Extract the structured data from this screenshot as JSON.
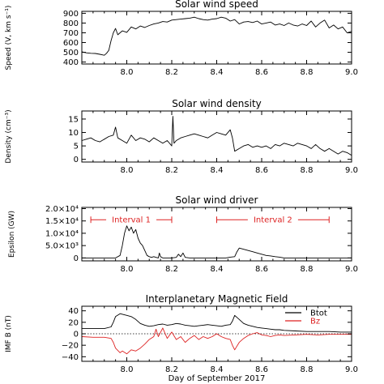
{
  "chart_data": [
    {
      "type": "line",
      "title": "Solar wind speed",
      "ylabel": "Speed (V, km s⁻¹)",
      "xlim": [
        7.8,
        9.0
      ],
      "ylim": [
        380,
        920
      ],
      "yticks": [
        400,
        500,
        600,
        700,
        800,
        900
      ],
      "ytick_labels": [
        "400",
        "500",
        "600",
        "700",
        "800",
        "900"
      ],
      "xticks": [
        8.0,
        8.2,
        8.4,
        8.6,
        8.8,
        9.0
      ],
      "xtick_labels": [
        "8.0",
        "8.2",
        "8.4",
        "8.6",
        "8.8",
        "9.0"
      ],
      "series": [
        {
          "color": "#000000",
          "x": [
            7.8,
            7.82,
            7.84,
            7.86,
            7.88,
            7.9,
            7.91,
            7.92,
            7.93,
            7.94,
            7.95,
            7.96,
            7.98,
            8.0,
            8.02,
            8.04,
            8.06,
            8.08,
            8.1,
            8.12,
            8.14,
            8.16,
            8.18,
            8.2,
            8.22,
            8.24,
            8.26,
            8.28,
            8.3,
            8.32,
            8.34,
            8.36,
            8.38,
            8.4,
            8.42,
            8.44,
            8.46,
            8.48,
            8.5,
            8.52,
            8.54,
            8.56,
            8.58,
            8.6,
            8.62,
            8.64,
            8.66,
            8.68,
            8.7,
            8.72,
            8.74,
            8.76,
            8.78,
            8.8,
            8.82,
            8.84,
            8.86,
            8.88,
            8.9,
            8.92,
            8.94,
            8.96,
            8.98,
            9.0
          ],
          "y": [
            505,
            495,
            490,
            488,
            480,
            470,
            490,
            520,
            620,
            700,
            745,
            680,
            720,
            705,
            760,
            740,
            770,
            755,
            775,
            790,
            800,
            815,
            810,
            830,
            835,
            840,
            845,
            850,
            860,
            845,
            835,
            830,
            840,
            845,
            860,
            850,
            820,
            835,
            790,
            810,
            815,
            805,
            820,
            790,
            800,
            810,
            780,
            790,
            775,
            800,
            780,
            770,
            790,
            775,
            820,
            760,
            800,
            830,
            750,
            780,
            740,
            760,
            700,
            715
          ]
        }
      ]
    },
    {
      "type": "line",
      "title": "Solar wind density",
      "ylabel": "Density (cm⁻³)",
      "xlim": [
        7.8,
        9.0
      ],
      "ylim": [
        -1,
        18
      ],
      "yticks": [
        0,
        5,
        10,
        15
      ],
      "ytick_labels": [
        "0",
        "5",
        "10",
        "15"
      ],
      "xticks": [
        8.0,
        8.2,
        8.4,
        8.6,
        8.8,
        9.0
      ],
      "xtick_labels": [
        "8.0",
        "8.2",
        "8.4",
        "8.6",
        "8.8",
        "9.0"
      ],
      "series": [
        {
          "color": "#000000",
          "x": [
            7.8,
            7.82,
            7.84,
            7.86,
            7.88,
            7.9,
            7.92,
            7.94,
            7.95,
            7.96,
            7.98,
            8.0,
            8.02,
            8.04,
            8.06,
            8.08,
            8.1,
            8.12,
            8.14,
            8.16,
            8.18,
            8.2,
            8.205,
            8.21,
            8.22,
            8.24,
            8.26,
            8.28,
            8.3,
            8.32,
            8.34,
            8.36,
            8.38,
            8.4,
            8.42,
            8.44,
            8.46,
            8.47,
            8.48,
            8.5,
            8.52,
            8.54,
            8.56,
            8.58,
            8.6,
            8.62,
            8.64,
            8.66,
            8.68,
            8.7,
            8.72,
            8.74,
            8.76,
            8.78,
            8.8,
            8.82,
            8.84,
            8.86,
            8.88,
            8.9,
            8.92,
            8.94,
            8.96,
            8.98,
            9.0
          ],
          "y": [
            7,
            7.5,
            8,
            7,
            6.5,
            7.5,
            8.5,
            9,
            12,
            8,
            7,
            6,
            9,
            7,
            8,
            7.5,
            6.5,
            8,
            7,
            6,
            7,
            5,
            16,
            6,
            7,
            8,
            8.5,
            9,
            9.5,
            9,
            8.5,
            8,
            9,
            10,
            9.5,
            9,
            11,
            8,
            3,
            4,
            5,
            5.5,
            4.5,
            5,
            4.5,
            5,
            4,
            5.5,
            5,
            6,
            5.5,
            5,
            6,
            5.5,
            5,
            4,
            5.5,
            4,
            3,
            4,
            3,
            2,
            3,
            2.5,
            1.5
          ]
        }
      ]
    },
    {
      "type": "line",
      "title": "Solar wind driver",
      "ylabel": "Epsilon (GW)",
      "xlim": [
        7.8,
        9.0
      ],
      "ylim": [
        -0.12,
        2.05
      ],
      "yticks": [
        0,
        0.5,
        1.0,
        1.5,
        2.0
      ],
      "ytick_labels": [
        "0",
        "5.0×10³",
        "1.0×10⁴",
        "1.5×10⁴",
        "2.0×10⁴"
      ],
      "xticks": [
        8.0,
        8.2,
        8.4,
        8.6,
        8.8,
        9.0
      ],
      "xtick_labels": [
        "8.0",
        "8.2",
        "8.4",
        "8.6",
        "8.8",
        "9.0"
      ],
      "annotations": [
        {
          "text": "Interval 1",
          "x_start": 7.84,
          "x_end": 8.2,
          "y": 1.55,
          "color": "#dd2222"
        },
        {
          "text": "Interval 2",
          "x_start": 8.4,
          "x_end": 8.9,
          "y": 1.55,
          "color": "#dd2222"
        }
      ],
      "series": [
        {
          "color": "#000000",
          "x": [
            7.8,
            7.85,
            7.9,
            7.95,
            7.97,
            7.98,
            7.99,
            8.0,
            8.01,
            8.02,
            8.03,
            8.04,
            8.05,
            8.06,
            8.07,
            8.08,
            8.09,
            8.1,
            8.11,
            8.12,
            8.13,
            8.14,
            8.145,
            8.15,
            8.16,
            8.18,
            8.2,
            8.22,
            8.23,
            8.24,
            8.25,
            8.26,
            8.28,
            8.3,
            8.35,
            8.4,
            8.44,
            8.46,
            8.48,
            8.49,
            8.5,
            8.52,
            8.54,
            8.56,
            8.58,
            8.6,
            8.62,
            8.64,
            8.66,
            8.68,
            8.7,
            8.8,
            8.9,
            9.0
          ],
          "y": [
            0,
            0,
            0,
            0,
            0.1,
            0.5,
            1.0,
            1.3,
            1.1,
            1.25,
            1.0,
            1.15,
            0.8,
            0.6,
            0.5,
            0.3,
            0.1,
            0.05,
            0.02,
            0.05,
            0.02,
            0,
            0.2,
            0.05,
            0,
            0,
            0,
            0.02,
            0.15,
            0.05,
            0.2,
            0.02,
            0,
            0,
            0,
            0,
            0,
            0.03,
            0.05,
            0.25,
            0.4,
            0.35,
            0.3,
            0.25,
            0.2,
            0.15,
            0.1,
            0.08,
            0.05,
            0.03,
            0,
            0,
            0,
            0
          ]
        }
      ]
    },
    {
      "type": "line",
      "title": "Interplanetary Magnetic Field",
      "ylabel": "IMF B (nT)",
      "xlabel": "Day of September 2017",
      "xlim": [
        7.8,
        9.0
      ],
      "ylim": [
        -48,
        48
      ],
      "yticks": [
        -40,
        -20,
        0,
        20,
        40
      ],
      "ytick_labels": [
        "−40",
        "−20",
        "0",
        "20",
        "40"
      ],
      "xticks": [
        8.0,
        8.2,
        8.4,
        8.6,
        8.8,
        9.0
      ],
      "xtick_labels": [
        "8.0",
        "8.2",
        "8.4",
        "8.6",
        "8.8",
        "9.0"
      ],
      "series": [
        {
          "name": "Btot",
          "color": "#000000",
          "x": [
            7.8,
            7.85,
            7.9,
            7.93,
            7.94,
            7.95,
            7.97,
            8.0,
            8.02,
            8.04,
            8.06,
            8.08,
            8.1,
            8.12,
            8.14,
            8.16,
            8.18,
            8.2,
            8.22,
            8.24,
            8.26,
            8.28,
            8.3,
            8.32,
            8.34,
            8.36,
            8.38,
            8.4,
            8.42,
            8.44,
            8.46,
            8.47,
            8.48,
            8.5,
            8.52,
            8.54,
            8.56,
            8.58,
            8.6,
            8.62,
            8.64,
            8.66,
            8.68,
            8.7,
            8.75,
            8.8,
            8.85,
            8.9,
            8.95,
            9.0
          ],
          "y": [
            9,
            9,
            9,
            12,
            20,
            30,
            35,
            32,
            30,
            25,
            18,
            15,
            13,
            14,
            16,
            17,
            15,
            16,
            18,
            17,
            15,
            14,
            13,
            14,
            15,
            16,
            15,
            14,
            13,
            15,
            16,
            22,
            32,
            25,
            18,
            15,
            13,
            11,
            10,
            9,
            8,
            7,
            7,
            6,
            5,
            4,
            4,
            4,
            3,
            3
          ]
        },
        {
          "name": "Bz",
          "color": "#dd2222",
          "x": [
            7.8,
            7.85,
            7.9,
            7.93,
            7.94,
            7.95,
            7.97,
            7.98,
            8.0,
            8.02,
            8.04,
            8.06,
            8.08,
            8.1,
            8.12,
            8.13,
            8.14,
            8.16,
            8.18,
            8.2,
            8.22,
            8.24,
            8.26,
            8.28,
            8.3,
            8.32,
            8.34,
            8.36,
            8.38,
            8.4,
            8.42,
            8.44,
            8.46,
            8.47,
            8.48,
            8.5,
            8.52,
            8.54,
            8.56,
            8.58,
            8.6,
            8.62,
            8.64,
            8.66,
            8.68,
            8.7,
            8.75,
            8.8,
            8.85,
            8.9,
            8.95,
            9.0
          ],
          "y": [
            -5,
            -6,
            -6,
            -8,
            -15,
            -25,
            -33,
            -30,
            -35,
            -28,
            -30,
            -25,
            -18,
            -10,
            -5,
            8,
            -5,
            10,
            -8,
            3,
            -10,
            -5,
            -15,
            -8,
            -3,
            -10,
            -5,
            -8,
            -5,
            0,
            -5,
            -8,
            -10,
            -20,
            -28,
            -15,
            -8,
            -3,
            0,
            2,
            -2,
            -3,
            -5,
            -3,
            -2,
            -3,
            -2,
            -1,
            -2,
            -1,
            -1,
            -1
          ]
        }
      ]
    }
  ]
}
